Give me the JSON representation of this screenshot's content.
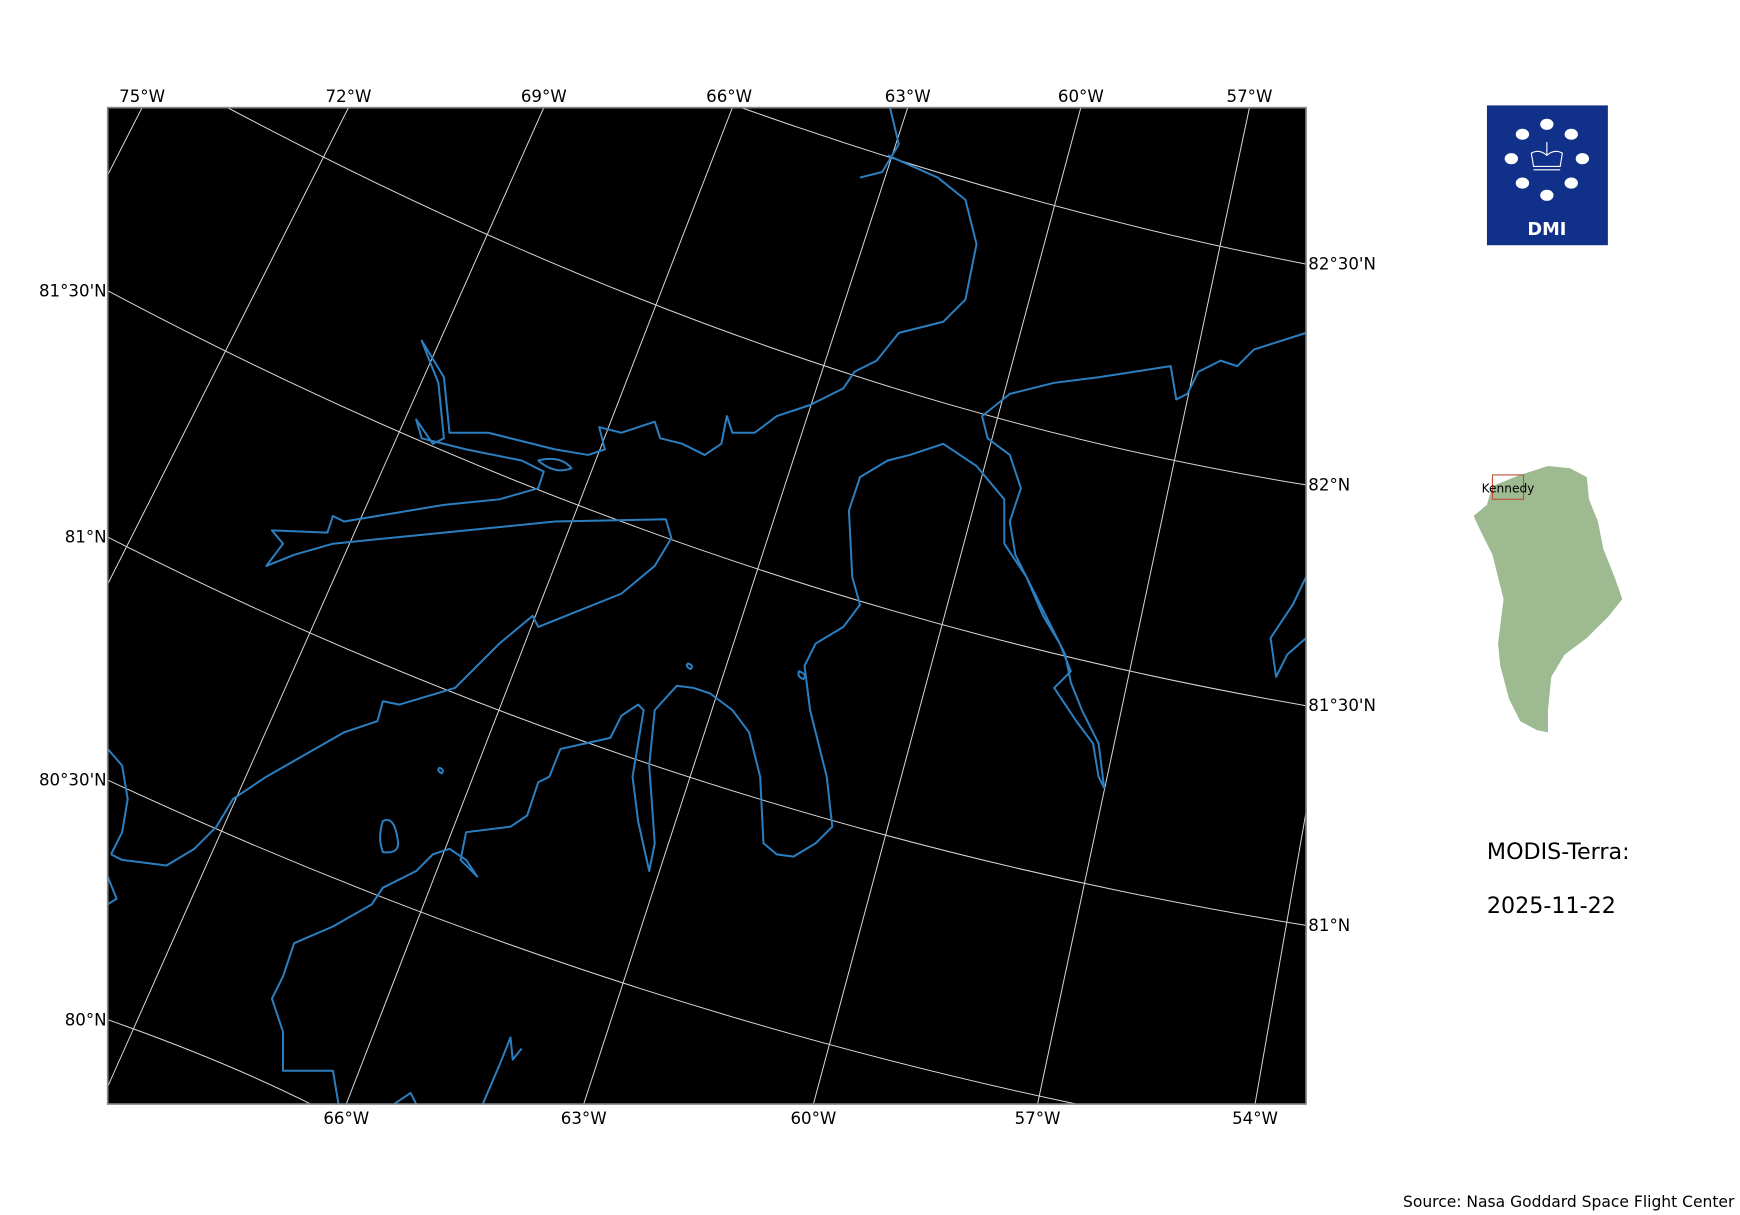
{
  "map": {
    "background_color": "#000000",
    "coastline_color": "#2b7fc0",
    "gridline_color": "#d8d8d8",
    "top_lon_labels": [
      "75°W",
      "72°W",
      "69°W",
      "66°W",
      "63°W",
      "60°W",
      "57°W"
    ],
    "bottom_lon_labels": [
      "66°W",
      "63°W",
      "60°W",
      "57°W",
      "54°W"
    ],
    "left_lat_labels": [
      "81°30'N",
      "81°N",
      "80°30'N",
      "80°N"
    ],
    "right_lat_labels": [
      "82°30'N",
      "82°N",
      "81°30'N",
      "81°N"
    ]
  },
  "logo": {
    "text": "DMI",
    "color": "#10308a"
  },
  "inset": {
    "label": "Kennedy",
    "land_color": "#9dba91",
    "box_color": "#c0503a"
  },
  "product": {
    "title": "MODIS-Terra:",
    "date": "2025-11-22"
  },
  "source": "Source: Nasa Goddard Space Flight Center"
}
